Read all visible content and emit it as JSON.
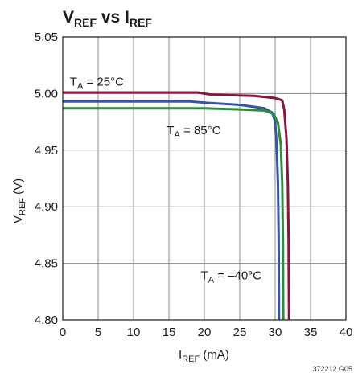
{
  "chart_data": {
    "type": "line",
    "title": {
      "main1": "V",
      "sub1": "REF",
      "mid": " vs I",
      "sub2": "REF"
    },
    "xlabel": {
      "main": "I",
      "sub": "REF",
      "unit": " (mA)"
    },
    "ylabel": {
      "main": "V",
      "sub": "REF",
      "unit": " (V)"
    },
    "xlim": [
      0,
      40
    ],
    "ylim": [
      4.8,
      5.05
    ],
    "x_ticks": [
      0,
      5,
      10,
      15,
      20,
      25,
      30,
      35,
      40
    ],
    "x_tick_labels": [
      "0",
      "5",
      "10",
      "15",
      "20",
      "25",
      "30",
      "35",
      "40"
    ],
    "y_ticks": [
      4.8,
      4.85,
      4.9,
      4.95,
      5.0,
      5.05
    ],
    "y_tick_labels": [
      "4.80",
      "4.85",
      "4.90",
      "4.95",
      "5.00",
      "5.05"
    ],
    "grid": true,
    "series": [
      {
        "color": "#8b1538",
        "label": {
          "main": "T",
          "sub": "A",
          "rest": " = 25°C"
        },
        "label_at": [
          1.0,
          5.007
        ],
        "points": [
          [
            0,
            5.001
          ],
          [
            19,
            5.001
          ],
          [
            21,
            4.999
          ],
          [
            27,
            4.998
          ],
          [
            30,
            4.996
          ],
          [
            31.0,
            4.994
          ],
          [
            31.3,
            4.985
          ],
          [
            31.6,
            4.96
          ],
          [
            31.8,
            4.92
          ],
          [
            31.9,
            4.87
          ],
          [
            31.95,
            4.8
          ]
        ]
      },
      {
        "color": "#3355a8",
        "label": {
          "main": "T",
          "sub": "A",
          "rest": " = 85°C"
        },
        "label_at": [
          14.7,
          4.964
        ],
        "points": [
          [
            0,
            4.993
          ],
          [
            18,
            4.993
          ],
          [
            20,
            4.992
          ],
          [
            25,
            4.99
          ],
          [
            28.5,
            4.987
          ],
          [
            29.6,
            4.983
          ],
          [
            30.0,
            4.975
          ],
          [
            30.2,
            4.955
          ],
          [
            30.4,
            4.92
          ],
          [
            30.5,
            4.87
          ],
          [
            30.55,
            4.8
          ]
        ]
      },
      {
        "color": "#2e8b3e",
        "label": {
          "main": "T",
          "sub": "A",
          "rest": " = –40°C"
        },
        "label_at": [
          19.5,
          4.836
        ],
        "points": [
          [
            0,
            4.987
          ],
          [
            20,
            4.987
          ],
          [
            25,
            4.986
          ],
          [
            28.5,
            4.985
          ],
          [
            29.8,
            4.982
          ],
          [
            30.4,
            4.974
          ],
          [
            30.8,
            4.955
          ],
          [
            31.0,
            4.92
          ],
          [
            31.1,
            4.87
          ],
          [
            31.15,
            4.8
          ]
        ]
      }
    ],
    "figure_code": "372212 G05"
  }
}
